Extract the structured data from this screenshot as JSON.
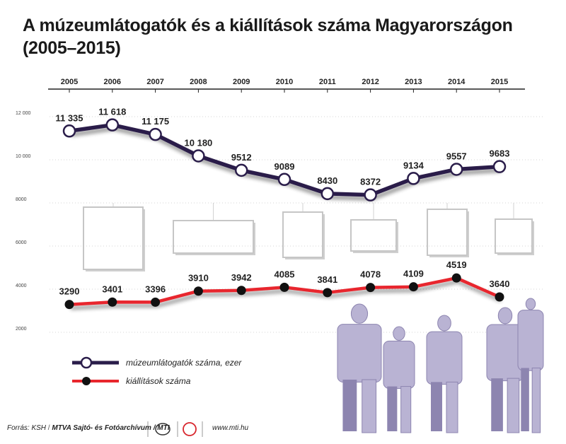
{
  "title_line1": "A múzeumlátogatók és a kiállítások száma Magyarországon",
  "title_line2": "(2005–2015)",
  "colors": {
    "visitors": "#2a1d4a",
    "exhibitions": "#e8262d",
    "people": "#b9b3d3",
    "people_dark": "#8d85b0",
    "grid": "#c8c8c8"
  },
  "chart_data": {
    "type": "line",
    "x": [
      "2005",
      "2006",
      "2007",
      "2008",
      "2009",
      "2010",
      "2011",
      "2012",
      "2013",
      "2014",
      "2015"
    ],
    "ylim": [
      2000,
      12000
    ],
    "yticks": [
      2000,
      4000,
      6000,
      8000,
      10000,
      12000
    ],
    "ytick_labels": [
      "2000",
      "4000",
      "6000",
      "8000",
      "10 000",
      "12 000"
    ],
    "grid": true,
    "legend_position": "bottom-left",
    "series": [
      {
        "name": "múzeumlátogatók száma, ezer",
        "values": [
          11335,
          11618,
          11175,
          10180,
          9512,
          9089,
          8430,
          8372,
          9134,
          9557,
          9683
        ],
        "labels": [
          "11 335",
          "11 618",
          "11 175",
          "10 180",
          "9512",
          "9089",
          "8430",
          "8372",
          "9134",
          "9557",
          "9683"
        ],
        "marker": "open-circle"
      },
      {
        "name": "kiállítások száma",
        "values": [
          3290,
          3401,
          3396,
          3910,
          3942,
          4085,
          3841,
          4078,
          4109,
          4519,
          3640
        ],
        "labels": [
          "3290",
          "3401",
          "3396",
          "3910",
          "3942",
          "4085",
          "3841",
          "4078",
          "4109",
          "4519",
          "3640"
        ],
        "marker": "filled-circle"
      }
    ]
  },
  "footer": {
    "source": "Forrás: KSH",
    "org": "MTVA Sajtó- és Fotóarchívum / MTI",
    "url": "www.mti.hu"
  }
}
